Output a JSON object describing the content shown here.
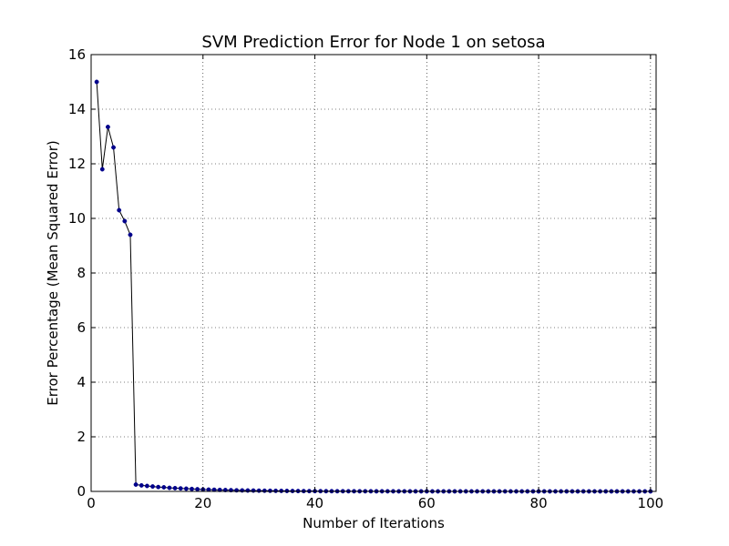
{
  "chart_data": {
    "type": "line",
    "title": "SVM Prediction Error for Node 1 on setosa",
    "xlabel": "Number of Iterations",
    "ylabel": "Error Percentage (Mean Squared Error)",
    "xlim": [
      0,
      101
    ],
    "ylim": [
      0,
      16
    ],
    "xticks": [
      0,
      20,
      40,
      60,
      80,
      100
    ],
    "yticks": [
      0,
      2,
      4,
      6,
      8,
      10,
      12,
      14,
      16
    ],
    "grid": true,
    "line_color": "#000000",
    "marker_color": "#00008b",
    "series": [
      {
        "x": [
          1,
          2,
          3,
          4,
          5,
          6,
          7,
          8,
          9,
          10,
          11,
          12,
          13,
          14,
          15,
          16,
          17,
          18,
          19,
          20,
          21,
          22,
          23,
          24,
          25,
          26,
          27,
          28,
          29,
          30,
          31,
          32,
          33,
          34,
          35,
          36,
          37,
          38,
          39,
          40,
          41,
          42,
          43,
          44,
          45,
          46,
          47,
          48,
          49,
          50,
          51,
          52,
          53,
          54,
          55,
          56,
          57,
          58,
          59,
          60,
          61,
          62,
          63,
          64,
          65,
          66,
          67,
          68,
          69,
          70,
          71,
          72,
          73,
          74,
          75,
          76,
          77,
          78,
          79,
          80,
          81,
          82,
          83,
          84,
          85,
          86,
          87,
          88,
          89,
          90,
          91,
          92,
          93,
          94,
          95,
          96,
          97,
          98,
          99,
          100
        ],
        "values": [
          15.0,
          11.8,
          13.35,
          12.6,
          10.3,
          9.9,
          9.4,
          0.25,
          0.22,
          0.2,
          0.18,
          0.16,
          0.15,
          0.13,
          0.12,
          0.11,
          0.1,
          0.09,
          0.08,
          0.07,
          0.065,
          0.06,
          0.055,
          0.05,
          0.045,
          0.04,
          0.036,
          0.033,
          0.03,
          0.027,
          0.025,
          0.023,
          0.021,
          0.019,
          0.017,
          0.015,
          0.013,
          0.012,
          0.011,
          0.01,
          0.009,
          0.008,
          0.008,
          0.007,
          0.007,
          0.006,
          0.006,
          0.005,
          0.005,
          0.005,
          0.004,
          0.004,
          0.004,
          0.004,
          0.003,
          0.003,
          0.003,
          0.003,
          0.003,
          0.003,
          0.002,
          0.002,
          0.002,
          0.002,
          0.002,
          0.002,
          0.002,
          0.002,
          0.002,
          0.002,
          0.001,
          0.001,
          0.001,
          0.001,
          0.001,
          0.001,
          0.001,
          0.001,
          0.001,
          0.001,
          0.001,
          0.001,
          0.001,
          0.001,
          0.001,
          0.001,
          0.001,
          0.001,
          0.001,
          0.001,
          0.001,
          0.001,
          0.001,
          0.001,
          0.001,
          0.001,
          0.001,
          0.001,
          0.001,
          0.001
        ]
      }
    ]
  }
}
